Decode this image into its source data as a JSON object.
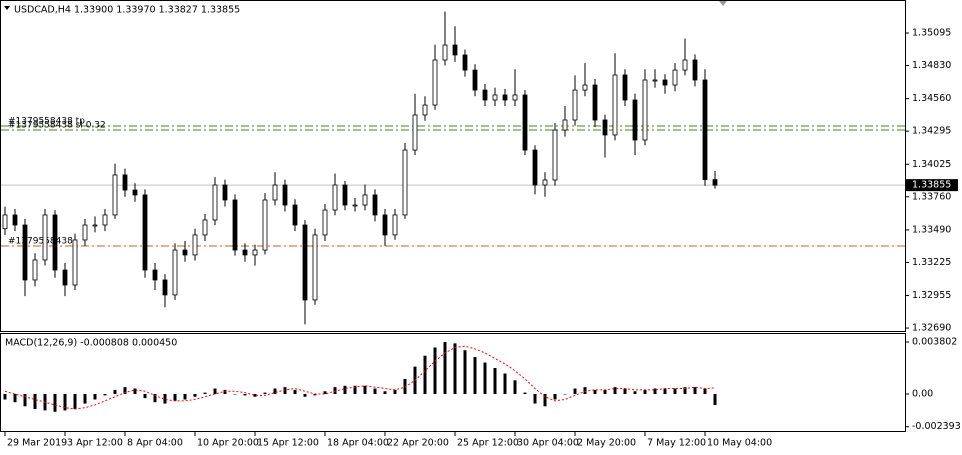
{
  "chart_data": [
    {
      "type": "candlestick",
      "title": "USDCAD,H4  1.33900 1.33970 1.33827 1.33855",
      "categories": [
        "29 Mar 2019",
        null,
        null,
        null,
        null,
        null,
        "3 Apr 12:00",
        null,
        null,
        null,
        null,
        null,
        "8 Apr 04:00",
        null,
        null,
        null,
        null,
        null,
        null,
        "10 Apr 20:00",
        null,
        null,
        null,
        null,
        null,
        "15 Apr 12:00",
        null,
        null,
        null,
        null,
        null,
        null,
        "18 Apr 04:00",
        null,
        null,
        null,
        null,
        null,
        "22 Apr 20:00",
        null,
        null,
        null,
        null,
        null,
        null,
        "25 Apr 12:00",
        null,
        null,
        null,
        null,
        null,
        "30 Apr 04:00",
        null,
        null,
        null,
        null,
        null,
        "2 May 20:00",
        null,
        null,
        null,
        null,
        null,
        null,
        "7 May 12:00",
        null,
        null,
        null,
        null,
        null,
        "10 May 04:00",
        null
      ],
      "open": [
        1.335,
        1.33612,
        1.3353,
        1.33082,
        1.33245,
        1.33612,
        1.33163,
        1.33041,
        1.33408,
        1.3353,
        1.3353,
        1.33612,
        1.33938,
        1.33815,
        1.33775,
        1.33163,
        1.33082,
        1.3296,
        1.33326,
        1.33286,
        1.33449,
        1.33571,
        1.33856,
        1.33734,
        1.33326,
        1.33286,
        1.33326,
        1.33734,
        1.33856,
        1.33693,
        1.3353,
        1.32919,
        1.33449,
        1.33652,
        1.33856,
        1.33693,
        1.33693,
        1.33775,
        1.33612,
        1.33449,
        1.33612,
        1.34141,
        1.34427,
        1.34508,
        1.34875,
        1.34997,
        1.34916,
        1.34793,
        1.3463,
        1.34549,
        1.3459,
        1.34549,
        1.3459,
        1.34141,
        1.33856,
        1.33897,
        1.34304,
        1.34386,
        1.3463,
        1.34671,
        1.34386,
        1.34264,
        1.34753,
        1.34549,
        1.34223,
        1.34712,
        1.34712,
        1.34671,
        1.34793,
        1.34875,
        1.34712,
        1.339
      ],
      "high": [
        1.3368,
        1.3366,
        1.3358,
        1.333,
        1.3366,
        1.3365,
        1.3322,
        1.3346,
        1.3358,
        1.336,
        1.3366,
        1.3403,
        1.3399,
        1.3387,
        1.3382,
        1.3322,
        1.3313,
        1.3338,
        1.334,
        1.335,
        1.3362,
        1.3392,
        1.339,
        1.3378,
        1.3338,
        1.3337,
        1.3379,
        1.3396,
        1.339,
        1.3374,
        1.3357,
        1.335,
        1.337,
        1.3395,
        1.3389,
        1.3375,
        1.3386,
        1.3382,
        1.3366,
        1.3366,
        1.342,
        1.346,
        1.3458,
        1.35,
        1.3527,
        1.3515,
        1.3496,
        1.3484,
        1.3468,
        1.3465,
        1.3464,
        1.348,
        1.3463,
        1.3418,
        1.3396,
        1.3436,
        1.345,
        1.3475,
        1.3485,
        1.3472,
        1.3443,
        1.3493,
        1.348,
        1.346,
        1.348,
        1.348,
        1.3476,
        1.3485,
        1.3505,
        1.3492,
        1.348,
        1.3397
      ],
      "low": [
        1.3345,
        1.3348,
        1.3295,
        1.3303,
        1.332,
        1.331,
        1.3295,
        1.33,
        1.3336,
        1.3347,
        1.3348,
        1.3358,
        1.3376,
        1.3372,
        1.331,
        1.33,
        1.3286,
        1.3292,
        1.3323,
        1.3324,
        1.334,
        1.3353,
        1.3368,
        1.3328,
        1.3323,
        1.332,
        1.3329,
        1.3369,
        1.3364,
        1.3348,
        1.3272,
        1.3288,
        1.334,
        1.3361,
        1.3365,
        1.3364,
        1.3365,
        1.3356,
        1.3336,
        1.3341,
        1.3358,
        1.341,
        1.3438,
        1.3447,
        1.3483,
        1.3486,
        1.3474,
        1.3458,
        1.345,
        1.345,
        1.345,
        1.345,
        1.341,
        1.3378,
        1.3376,
        1.3385,
        1.3425,
        1.3434,
        1.3458,
        1.3433,
        1.3408,
        1.3422,
        1.345,
        1.341,
        1.3418,
        1.3465,
        1.346,
        1.3462,
        1.3475,
        1.3466,
        1.3385,
        1.33827
      ],
      "close": [
        1.33612,
        1.3353,
        1.33082,
        1.33245,
        1.33612,
        1.33163,
        1.33041,
        1.33408,
        1.3353,
        1.3353,
        1.33612,
        1.33938,
        1.33815,
        1.33775,
        1.33163,
        1.33082,
        1.3296,
        1.33326,
        1.33286,
        1.33449,
        1.33571,
        1.33856,
        1.33734,
        1.33326,
        1.33286,
        1.33326,
        1.33734,
        1.33856,
        1.33693,
        1.3353,
        1.32919,
        1.33449,
        1.33652,
        1.33856,
        1.33693,
        1.33693,
        1.33775,
        1.33612,
        1.33449,
        1.33612,
        1.34141,
        1.34427,
        1.34508,
        1.34875,
        1.34997,
        1.34916,
        1.34793,
        1.3463,
        1.34549,
        1.3459,
        1.34549,
        1.3459,
        1.34141,
        1.33856,
        1.33897,
        1.34304,
        1.34386,
        1.3463,
        1.34671,
        1.34386,
        1.34264,
        1.34753,
        1.34549,
        1.34223,
        1.34712,
        1.34712,
        1.34671,
        1.34793,
        1.34875,
        1.34712,
        1.339,
        1.33855
      ],
      "up_color": "#ffffff",
      "down_color": "#000000",
      "ylim": [
        1.32666,
        1.35356
      ],
      "yticks": [
        1.35095,
        {
          "value": 1.3483,
          "label": "1.34830"
        },
        {
          "value": 1.3456,
          "label": "1.34560"
        },
        1.34295,
        1.34025,
        {
          "value": 1.3376,
          "label": "1.33760"
        },
        {
          "value": 1.3349,
          "label": "1.33490"
        },
        1.33225,
        1.32955,
        {
          "value": 1.3269,
          "label": "1.32690"
        }
      ],
      "current_price": 1.33855,
      "levels": [
        {
          "label": "#1379558438 tp",
          "value": 1.34337,
          "color": "#4f7f1f"
        },
        {
          "label": "#1379558438 sl 0.32",
          "value": 1.34304,
          "color": "#4f7f1f"
        },
        {
          "label": "#1379558438",
          "value": 1.33359,
          "color": "#c0602a"
        }
      ]
    },
    {
      "type": "macd",
      "title": "MACD(12,26,9) -0.000808 0.000450",
      "values": [
        -0.0004,
        -0.0006,
        -0.0009,
        -0.0011,
        -0.0012,
        -0.0013,
        -0.0012,
        -0.0011,
        -0.0007,
        -0.0004,
        -0.0001,
        0.0003,
        0.0005,
        0.0004,
        -0.0003,
        -0.0006,
        -0.0007,
        -0.0005,
        -0.0004,
        -0.0002,
        0.0001,
        0.0004,
        0.0003,
        0,
        -0.0001,
        -0.0002,
        0.0001,
        0.0004,
        0.0005,
        0.0003,
        -0.0002,
        -0.0001,
        0.0002,
        0.0005,
        0.0006,
        0.0006,
        0.0006,
        0.0004,
        0.0002,
        0.0003,
        0.0011,
        0.002,
        0.0028,
        0.0034,
        0.0038,
        0.0037,
        0.0032,
        0.0027,
        0.0023,
        0.0019,
        0.0015,
        0.001,
        0.0001,
        -0.0007,
        -0.0009,
        -0.0004,
        0,
        0.0004,
        0.0005,
        0.0003,
        0.0003,
        0.0005,
        0.0004,
        0.0002,
        0.0003,
        0.0004,
        0.0004,
        0.0004,
        0.0005,
        0.0005,
        0.0004,
        -0.000808
      ],
      "signal": [
        0.0002,
        0,
        -0.0002,
        -0.0004,
        -0.0006,
        -0.0008,
        -0.001,
        -0.0011,
        -0.001,
        -0.0008,
        -0.0005,
        -0.0002,
        0.0001,
        0.0003,
        0.0002,
        -0.0001,
        -0.0004,
        -0.0005,
        -0.0005,
        -0.0004,
        -0.0002,
        0,
        0.0002,
        0.0002,
        0.0001,
        -0.0001,
        -0.0001,
        0.0001,
        0.0003,
        0.0004,
        0.0002,
        0,
        0,
        0.0002,
        0.0004,
        0.0005,
        0.0006,
        0.0005,
        0.0004,
        0.0003,
        0.0005,
        0.001,
        0.0017,
        0.0024,
        0.003,
        0.0034,
        0.0035,
        0.0033,
        0.003,
        0.0026,
        0.0022,
        0.0017,
        0.0011,
        0.0004,
        -0.0002,
        -0.0005,
        -0.0004,
        -0.0001,
        0.0002,
        0.0003,
        0.0003,
        0.0004,
        0.0004,
        0.0003,
        0.0003,
        0.0003,
        0.0004,
        0.0004,
        0.0004,
        0.0005,
        0.0004,
        0.00045
      ],
      "color": "#000000",
      "signal_color": "#ff0000",
      "ylim": [
        -0.002778,
        0.004386
      ],
      "yticks": [
        0.003802,
        {
          "value": 0,
          "label": "0.00"
        },
        -0.002393
      ]
    }
  ]
}
